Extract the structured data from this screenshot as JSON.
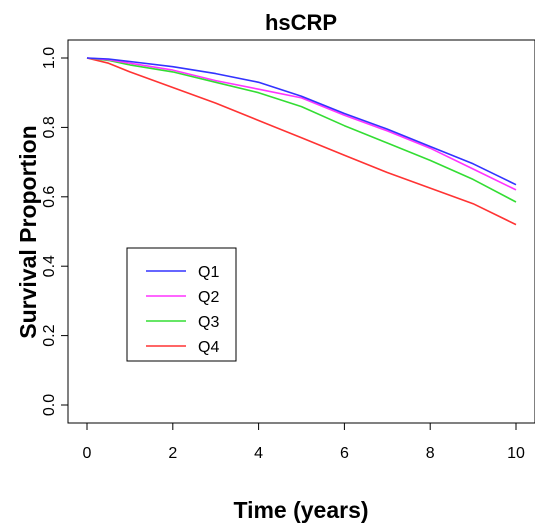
{
  "chart_data": {
    "type": "line",
    "title": "hsCRP",
    "xlabel": "Time (years)",
    "ylabel": "Survival Proportion",
    "xlim": [
      0,
      10
    ],
    "ylim": [
      0,
      1
    ],
    "x_ticks": [
      "0",
      "2",
      "4",
      "6",
      "8",
      "10"
    ],
    "y_ticks": [
      "0.0",
      "0.2",
      "0.4",
      "0.6",
      "0.8",
      "1.0"
    ],
    "grid": false,
    "legend_position": "bottom-left",
    "series": [
      {
        "name": "Q1",
        "color": "#3333ff",
        "x": [
          0,
          0.5,
          1,
          2,
          3,
          4,
          5,
          6,
          7,
          8,
          9,
          10
        ],
        "values": [
          1.0,
          0.997,
          0.99,
          0.975,
          0.955,
          0.93,
          0.89,
          0.84,
          0.795,
          0.745,
          0.695,
          0.635
        ]
      },
      {
        "name": "Q2",
        "color": "#ff33ff",
        "x": [
          0,
          0.5,
          1,
          2,
          3,
          4,
          5,
          6,
          7,
          8,
          9,
          10
        ],
        "values": [
          1.0,
          0.995,
          0.985,
          0.965,
          0.935,
          0.91,
          0.885,
          0.835,
          0.79,
          0.74,
          0.68,
          0.62
        ]
      },
      {
        "name": "Q3",
        "color": "#33dd33",
        "x": [
          0,
          0.5,
          1,
          2,
          3,
          4,
          5,
          6,
          7,
          8,
          9,
          10
        ],
        "values": [
          1.0,
          0.993,
          0.98,
          0.96,
          0.93,
          0.9,
          0.86,
          0.805,
          0.755,
          0.705,
          0.65,
          0.585
        ]
      },
      {
        "name": "Q4",
        "color": "#ff3333",
        "x": [
          0,
          0.5,
          1,
          2,
          3,
          4,
          5,
          6,
          7,
          8,
          9,
          10
        ],
        "values": [
          1.0,
          0.985,
          0.96,
          0.915,
          0.87,
          0.82,
          0.77,
          0.72,
          0.67,
          0.625,
          0.58,
          0.52
        ]
      }
    ]
  }
}
